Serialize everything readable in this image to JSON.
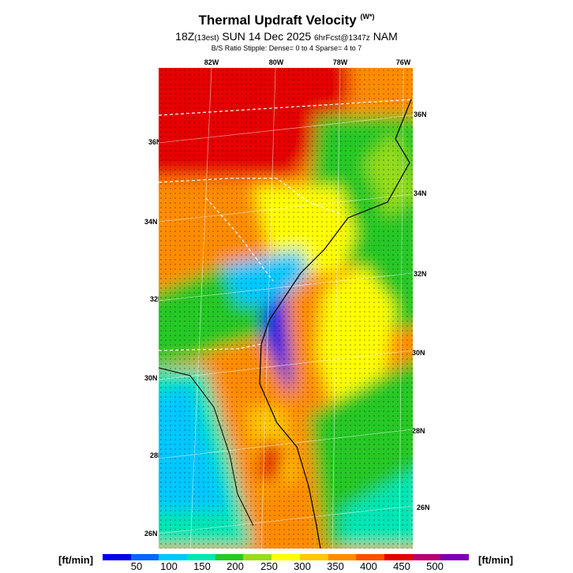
{
  "header": {
    "title": "Thermal Updraft Velocity",
    "title_unit": "(W*)",
    "subtitle_hour": "18Z",
    "subtitle_local": "(13est)",
    "subtitle_date": "SUN 14 Dec 2025",
    "subtitle_fcst": "6hrFcst@1347z",
    "subtitle_model": "NAM",
    "stipple_note": "B/S Ratio Stipple:  Dense= 0 to 4  Sparse= 4 to 7"
  },
  "map": {
    "top_lon_labels": [
      "82W",
      "80W",
      "78W",
      "76W"
    ],
    "left_lat_labels": [
      "36N",
      "34N",
      "32N",
      "30N",
      "28N",
      "26N"
    ],
    "right_lat_labels": [
      "36N",
      "34N",
      "32N",
      "30N",
      "28N",
      "26N"
    ]
  },
  "legend": {
    "unit_left": "[ft/min]",
    "unit_right": "[ft/min]",
    "ticks": [
      "50",
      "100",
      "150",
      "200",
      "250",
      "300",
      "350",
      "400",
      "450",
      "500"
    ],
    "colors": [
      "#0000e6",
      "#0a64ff",
      "#00c8ff",
      "#00e6b4",
      "#28c828",
      "#96dc1e",
      "#ffff00",
      "#ffc800",
      "#ff8c00",
      "#ff5000",
      "#e60000",
      "#b40078",
      "#7800b4"
    ]
  }
}
